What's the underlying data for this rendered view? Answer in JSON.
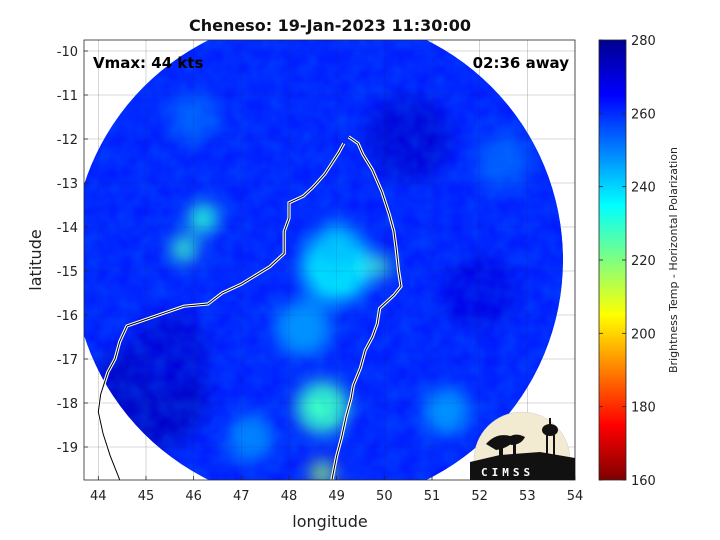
{
  "chart_data": {
    "type": "heatmap",
    "title": "Cheneso: 19-Jan-2023 11:30:00",
    "xlabel": "longitude",
    "ylabel": "latitude",
    "xlim": [
      43.7,
      54.0
    ],
    "ylim": [
      -19.75,
      -9.75
    ],
    "xticks": [
      44,
      45,
      46,
      47,
      48,
      49,
      50,
      51,
      52,
      53,
      54
    ],
    "yticks": [
      -10,
      -11,
      -12,
      -13,
      -14,
      -15,
      -16,
      -17,
      -18,
      -19
    ],
    "grid": true,
    "annotations": {
      "left": "Vmax: 44 kts",
      "right": "02:36 away"
    },
    "colorbar": {
      "label": "Brightness Temp - Horizontal Polarization",
      "range": [
        160,
        280
      ],
      "ticks": [
        280,
        260,
        240,
        220,
        200,
        180,
        160
      ],
      "colors": [
        "#7f0000",
        "#ff0000",
        "#ff8000",
        "#ffff00",
        "#80ff80",
        "#00ffff",
        "#0080ff",
        "#0000ff",
        "#00008f"
      ]
    },
    "swath": {
      "center_lon": 48.6,
      "center_lat": -14.75,
      "radius_deg": 5.15,
      "background_value": 262,
      "features": [
        {
          "lon": 49.0,
          "lat": -14.9,
          "value": 238,
          "r": 0.75
        },
        {
          "lon": 49.0,
          "lat": -14.4,
          "value": 242,
          "r": 0.45
        },
        {
          "lon": 49.9,
          "lat": -14.9,
          "value": 225,
          "r": 0.22
        },
        {
          "lon": 48.7,
          "lat": -18.1,
          "value": 228,
          "r": 0.55
        },
        {
          "lon": 48.7,
          "lat": -19.6,
          "value": 215,
          "r": 0.25
        },
        {
          "lon": 46.2,
          "lat": -13.8,
          "value": 230,
          "r": 0.32
        },
        {
          "lon": 45.8,
          "lat": -14.5,
          "value": 228,
          "r": 0.28
        },
        {
          "lon": 48.3,
          "lat": -16.3,
          "value": 248,
          "r": 0.6
        },
        {
          "lon": 45.1,
          "lat": -17.8,
          "value": 272,
          "r": 1.2
        },
        {
          "lon": 45.5,
          "lat": -16.8,
          "value": 270,
          "r": 0.8
        },
        {
          "lon": 51.3,
          "lat": -18.2,
          "value": 248,
          "r": 0.5
        },
        {
          "lon": 52.5,
          "lat": -12.5,
          "value": 255,
          "r": 0.6
        },
        {
          "lon": 50.5,
          "lat": -12.0,
          "value": 270,
          "r": 0.9
        },
        {
          "lon": 46.0,
          "lat": -11.5,
          "value": 255,
          "r": 0.55
        },
        {
          "lon": 52.0,
          "lat": -15.5,
          "value": 268,
          "r": 0.8
        },
        {
          "lon": 47.2,
          "lat": -18.8,
          "value": 250,
          "r": 0.5
        }
      ]
    },
    "coastline": [
      [
        49.25,
        -11.95
      ],
      [
        49.45,
        -12.1
      ],
      [
        49.55,
        -12.35
      ],
      [
        49.75,
        -12.7
      ],
      [
        49.95,
        -13.2
      ],
      [
        50.1,
        -13.7
      ],
      [
        50.2,
        -14.1
      ],
      [
        50.25,
        -14.5
      ],
      [
        50.3,
        -15.0
      ],
      [
        50.35,
        -15.35
      ],
      [
        50.2,
        -15.55
      ],
      [
        50.05,
        -15.7
      ],
      [
        49.9,
        -15.85
      ],
      [
        49.85,
        -16.2
      ],
      [
        49.75,
        -16.5
      ],
      [
        49.6,
        -16.8
      ],
      [
        49.5,
        -17.2
      ],
      [
        49.35,
        -17.6
      ],
      [
        49.3,
        -17.9
      ],
      [
        49.2,
        -18.3
      ],
      [
        49.1,
        -18.8
      ],
      [
        49.0,
        -19.2
      ],
      [
        48.9,
        -19.75
      ]
    ],
    "coastline_west": [
      [
        49.15,
        -12.1
      ],
      [
        49.05,
        -12.3
      ],
      [
        48.9,
        -12.55
      ],
      [
        48.75,
        -12.8
      ],
      [
        48.5,
        -13.1
      ],
      [
        48.3,
        -13.3
      ],
      [
        48.0,
        -13.45
      ],
      [
        48.0,
        -13.8
      ],
      [
        47.9,
        -14.1
      ],
      [
        47.9,
        -14.6
      ],
      [
        47.6,
        -14.9
      ],
      [
        47.3,
        -15.1
      ],
      [
        47.0,
        -15.3
      ],
      [
        46.6,
        -15.5
      ],
      [
        46.3,
        -15.75
      ],
      [
        45.8,
        -15.8
      ],
      [
        45.4,
        -15.95
      ],
      [
        45.0,
        -16.1
      ],
      [
        44.6,
        -16.25
      ],
      [
        44.45,
        -16.6
      ],
      [
        44.35,
        -17.0
      ],
      [
        44.2,
        -17.3
      ],
      [
        44.05,
        -17.8
      ],
      [
        44.0,
        -18.2
      ],
      [
        44.1,
        -18.7
      ],
      [
        44.25,
        -19.2
      ],
      [
        44.45,
        -19.75
      ]
    ]
  },
  "logo": {
    "text": "CIMSS"
  }
}
